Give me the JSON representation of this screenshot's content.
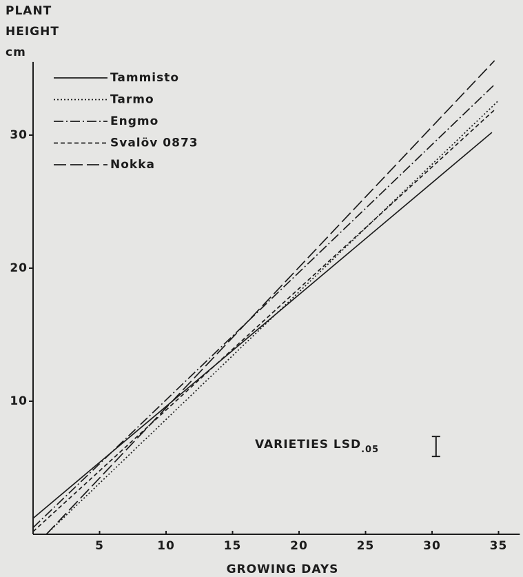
{
  "chart_data": {
    "type": "line",
    "ylabel": [
      "PLANT",
      "HEIGHT",
      "cm"
    ],
    "xlabel": "GROWING DAYS",
    "xlim": [
      0,
      36.6
    ],
    "ylim": [
      0,
      35.5
    ],
    "xticks": [
      5,
      10,
      15,
      20,
      25,
      30,
      35
    ],
    "yticks": [
      10,
      20,
      30
    ],
    "color": "#1c1c1c",
    "series": [
      {
        "name": "Tammisto",
        "style": "solid",
        "x": [
          0,
          34.5
        ],
        "values": [
          1.2,
          30.2
        ]
      },
      {
        "name": "Tarmo",
        "style": "dotted",
        "x": [
          1,
          35
        ],
        "values": [
          0,
          32.6
        ]
      },
      {
        "name": "Engmo",
        "style": "dashdot",
        "x": [
          0,
          34.7
        ],
        "values": [
          0.5,
          33.8
        ]
      },
      {
        "name": "Svalöv 0873",
        "style": "dashed",
        "x": [
          0,
          34.7
        ],
        "values": [
          0.2,
          31.9
        ]
      },
      {
        "name": "Nokka",
        "style": "longdash",
        "x": [
          1,
          34.7
        ],
        "values": [
          0,
          35.6
        ]
      }
    ],
    "annotation": {
      "text": "VARIETIES LSD",
      "subscript": ".05"
    },
    "lsd": {
      "x": 30.3,
      "y": 6.6,
      "error": 0.75
    }
  }
}
